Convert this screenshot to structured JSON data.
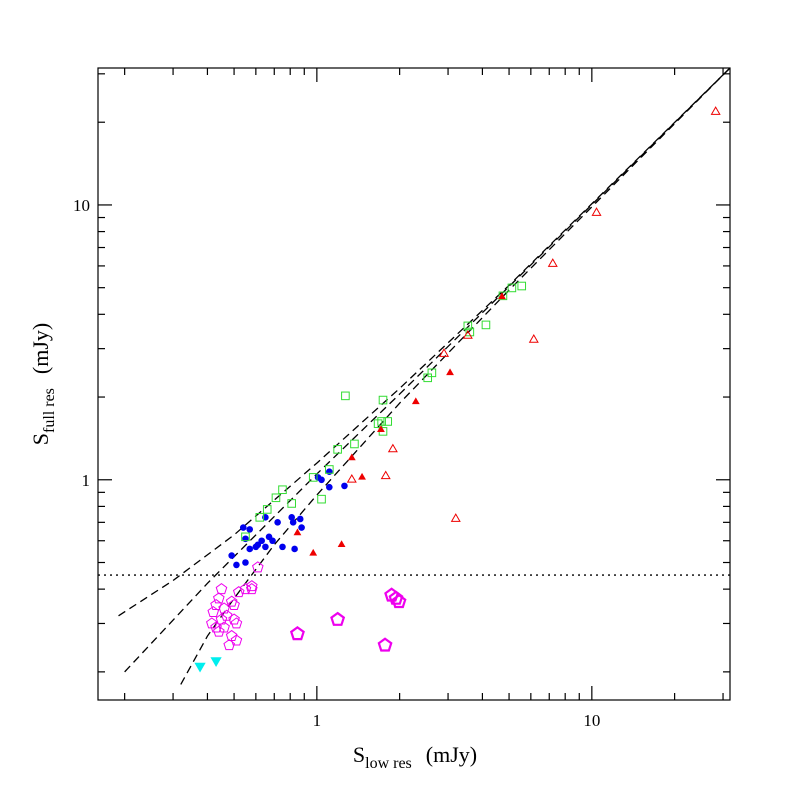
{
  "chart_data": {
    "type": "scatter",
    "xlabel": {
      "main": "S",
      "sub": "low res",
      "unit": "(mJy)"
    },
    "ylabel": {
      "main": "S",
      "sub": "full res",
      "unit": "(mJy)"
    },
    "xscale": "log",
    "yscale": "log",
    "xlim": [
      0.16,
      31.8
    ],
    "ylim": [
      0.158,
      31.5
    ],
    "xticks": [
      1,
      10
    ],
    "yticks": [
      1,
      10
    ],
    "xminorticks": [
      0.2,
      0.3,
      0.4,
      0.5,
      0.6,
      0.7,
      0.8,
      0.9,
      2,
      3,
      4,
      5,
      6,
      7,
      8,
      9,
      20,
      30
    ],
    "yminorticks": [
      0.2,
      0.3,
      0.4,
      0.5,
      0.6,
      0.7,
      0.8,
      0.9,
      2,
      3,
      4,
      5,
      6,
      7,
      8,
      9,
      20,
      30
    ],
    "hline": {
      "y": 0.45,
      "style": "dotted",
      "color": "#000000"
    },
    "curves": [
      {
        "style": "dashed",
        "color": "#000000",
        "x": [
          0.19,
          0.3,
          0.5,
          1,
          2,
          5,
          10,
          31.8
        ],
        "y": [
          0.32,
          0.43,
          0.63,
          1.15,
          2.15,
          5.1,
          10.1,
          31.5
        ]
      },
      {
        "style": "dashed",
        "color": "#000000",
        "x": [
          0.2,
          0.4,
          1,
          2,
          5,
          31.8
        ],
        "y": [
          0.2,
          0.42,
          1.05,
          2.05,
          5.05,
          31.5
        ]
      },
      {
        "style": "dashed",
        "color": "#000000",
        "x": [
          0.32,
          0.4,
          0.5,
          0.7,
          1,
          2,
          5,
          31.8
        ],
        "y": [
          0.18,
          0.27,
          0.37,
          0.58,
          0.88,
          1.9,
          4.9,
          31.5
        ]
      }
    ],
    "series": [
      {
        "marker": "circle-filled",
        "color": "#0000ee",
        "x": [
          0.54,
          0.55,
          0.49,
          0.51,
          0.55,
          0.57,
          0.6,
          0.61,
          0.63,
          0.65,
          0.67,
          0.69,
          0.72,
          0.75,
          0.81,
          0.82,
          0.87,
          0.88,
          0.83,
          1.01,
          1.04,
          1.11,
          1.11,
          1.26,
          0.57,
          0.65
        ],
        "y": [
          0.67,
          0.61,
          0.53,
          0.49,
          0.5,
          0.56,
          0.57,
          0.58,
          0.6,
          0.73,
          0.62,
          0.6,
          0.7,
          0.57,
          0.73,
          0.7,
          0.72,
          0.67,
          0.56,
          1.02,
          1.0,
          1.07,
          0.94,
          0.95,
          0.66,
          0.57
        ]
      },
      {
        "marker": "square-open",
        "color": "#33dd33",
        "x": [
          0.55,
          0.62,
          0.66,
          0.71,
          0.75,
          0.81,
          0.97,
          1.04,
          1.11,
          1.19,
          1.27,
          1.37,
          1.67,
          1.72,
          1.81,
          1.74,
          1.74,
          2.53,
          2.62,
          3.6,
          3.54,
          4.12,
          4.75,
          5.12,
          5.56
        ],
        "y": [
          0.62,
          0.73,
          0.78,
          0.86,
          0.92,
          0.82,
          1.02,
          0.85,
          1.09,
          1.29,
          2.02,
          1.35,
          1.6,
          1.63,
          1.63,
          1.5,
          1.95,
          2.35,
          2.45,
          3.45,
          3.63,
          3.66,
          4.67,
          4.99,
          5.07
        ]
      },
      {
        "marker": "triangle-filled",
        "color": "#ee0000",
        "x": [
          0.85,
          0.97,
          1.23,
          1.34,
          1.46,
          1.71,
          2.29,
          3.05,
          4.71
        ],
        "y": [
          0.64,
          0.54,
          0.58,
          1.2,
          1.02,
          1.52,
          1.92,
          2.45,
          4.63
        ]
      },
      {
        "marker": "triangle-open",
        "color": "#ee0000",
        "x": [
          1.34,
          1.78,
          1.89,
          3.2,
          2.9,
          3.54,
          6.15,
          7.21,
          10.4,
          28.2
        ],
        "y": [
          1.0,
          1.03,
          1.29,
          0.72,
          2.87,
          3.34,
          3.23,
          6.1,
          9.35,
          21.8
        ]
      },
      {
        "marker": "pentagon-open",
        "color": "#ee00ee",
        "x": [
          0.44,
          0.43,
          0.42,
          0.45,
          0.46,
          0.49,
          0.47,
          0.5,
          0.51,
          0.415,
          0.43,
          0.44,
          0.45,
          0.46,
          0.49,
          0.51,
          0.48,
          0.5,
          0.52,
          0.55,
          0.58,
          0.61,
          0.58
        ],
        "y": [
          0.37,
          0.35,
          0.33,
          0.4,
          0.34,
          0.36,
          0.32,
          0.31,
          0.3,
          0.3,
          0.29,
          0.28,
          0.31,
          0.29,
          0.27,
          0.26,
          0.25,
          0.35,
          0.39,
          0.4,
          0.41,
          0.48,
          0.4
        ]
      },
      {
        "marker": "pentagon-open-large",
        "color": "#ee00ee",
        "x": [
          0.85,
          1.19,
          1.87,
          1.94,
          1.99,
          1.77
        ],
        "y": [
          0.275,
          0.31,
          0.38,
          0.37,
          0.36,
          0.25
        ]
      },
      {
        "marker": "triangle-down-filled",
        "color": "#00eeee",
        "x": [
          0.376,
          0.43
        ],
        "y": [
          0.21,
          0.22
        ]
      }
    ]
  }
}
